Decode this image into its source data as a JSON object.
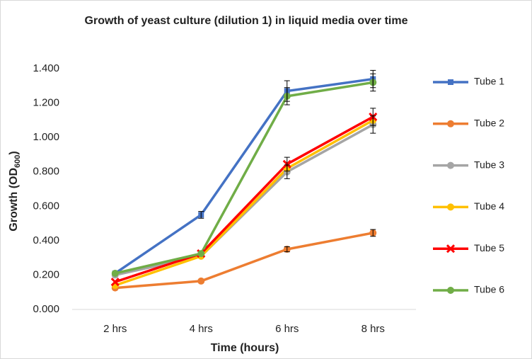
{
  "chart_data": {
    "type": "line",
    "title": "Growth of yeast culture (dilution 1) in liquid media over time",
    "x_label": "Time (hours)",
    "y_label": [
      "Growth (OD",
      "600",
      ")"
    ],
    "categories": [
      "2 hrs",
      "4 hrs",
      "6 hrs",
      "8 hrs"
    ],
    "ylim": [
      0,
      1.4
    ],
    "yticks": [
      {
        "value": 0,
        "label": "0.000"
      },
      {
        "value": 0.2,
        "label": "0.200"
      },
      {
        "value": 0.4,
        "label": "0.400"
      },
      {
        "value": 0.6,
        "label": "0.600"
      },
      {
        "value": 0.8,
        "label": "0.800"
      },
      {
        "value": 1.0,
        "label": "1.000"
      },
      {
        "value": 1.2,
        "label": "1.200"
      },
      {
        "value": 1.4,
        "label": "1.400"
      }
    ],
    "grid": false,
    "legend": "right",
    "series": [
      {
        "name": "Tube 1",
        "color": "#4472c4",
        "marker": "square",
        "values": [
          0.21,
          0.55,
          1.27,
          1.34
        ],
        "errors": [
          null,
          0.02,
          0.06,
          0.05
        ]
      },
      {
        "name": "Tube 2",
        "color": "#ed7d31",
        "marker": "circle",
        "values": [
          0.125,
          0.165,
          0.35,
          0.445
        ],
        "errors": [
          null,
          null,
          0.015,
          0.02
        ]
      },
      {
        "name": "Tube 3",
        "color": "#a5a5a5",
        "marker": "circle",
        "values": [
          0.2,
          0.31,
          0.8,
          1.075
        ],
        "errors": [
          null,
          null,
          0.04,
          0.05
        ]
      },
      {
        "name": "Tube 4",
        "color": "#ffc000",
        "marker": "circle",
        "values": [
          0.14,
          0.31,
          0.82,
          1.1
        ],
        "errors": [
          null,
          null,
          null,
          null
        ]
      },
      {
        "name": "Tube 5",
        "color": "#ff0000",
        "marker": "x",
        "values": [
          0.16,
          0.325,
          0.845,
          1.12
        ],
        "errors": [
          null,
          null,
          0.04,
          0.05
        ]
      },
      {
        "name": "Tube 6",
        "color": "#70ad47",
        "marker": "circle",
        "values": [
          0.21,
          0.325,
          1.24,
          1.32
        ],
        "errors": [
          null,
          null,
          0.05,
          0.05
        ]
      }
    ]
  }
}
